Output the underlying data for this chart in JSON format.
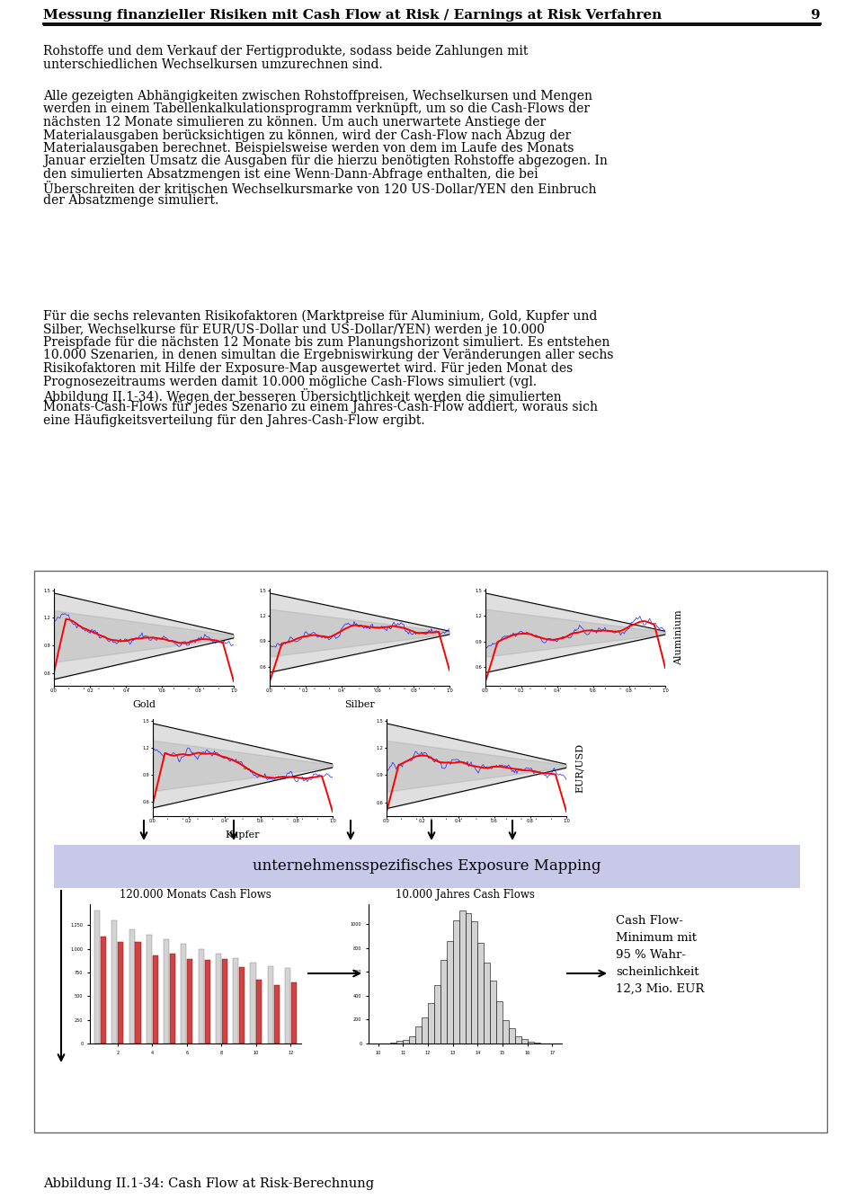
{
  "header_text": "Messung finanzieller Risiken mit Cash Flow at Risk / Earnings at Risk Verfahren",
  "header_page": "9",
  "para1": "Rohstoffe und dem Verkauf der Fertigprodukte, sodass beide Zahlungen mit unterschiedlichen Wechselkursen umzurechnen sind.",
  "para2_line1": "Alle gezeigten Abhängigkeiten zwischen Rohstoffpreisen, Wechselkursen und Mengen",
  "para2_line2": "werden in einem Tabellenkalkulationsprogramm verknüpft, um so die Cash-Flows der",
  "para2_line3": "nächsten 12 Monate simulieren zu können. Um auch unerwartete Anstiege der",
  "para2_line4": "Materialausgaben berücksichtigen zu können, wird der Cash-Flow nach Abzug der",
  "para2_line5": "Materialausgaben berechnet. Beispielsweise werden von dem im Laufe des Monats",
  "para2_line6": "Januar erzielten Umsatz die Ausgaben für die hierzu benötigten Rohstoffe abgezogen. In",
  "para2_line7": "den simulierten Absatzmengen ist eine Wenn-Dann-Abfrage enthalten, die bei",
  "para2_line8": "Überschreiten der kritischen Wechselkursmarke von 120 US-Dollar/YEN den Einbruch",
  "para2_line9": "der Absatzmenge simuliert.",
  "para3_line1": "Für die sechs relevanten Risikofaktoren (Marktpreise für Aluminium, Gold, Kupfer und",
  "para3_line2": "Silber, Wechselkurse für EUR/US-Dollar und US-Dollar/YEN) werden je 10.000",
  "para3_line3": "Preispfade für die nächsten 12 Monate bis zum Planungshorizont simuliert. Es entstehen",
  "para3_line4": "10.000 Szenarien, in denen simultan die Ergebniswirkung der Veränderungen aller sechs",
  "para3_line5": "Risikofaktoren mit Hilfe der Exposure-Map ausgewertet wird. Für jeden Monat des",
  "para3_line6": "Prognosezeitraums werden damit 10.000 mögliche Cash-Flows simuliert (vgl.",
  "para3_line7": "Abbildung II.1-34). Wegen der besseren Übersichtlichkeit werden die simulierten",
  "para3_line8": "Monats-Cash-Flows für jedes Szenario zu einem Jahres-Cash-Flow addiert, woraus sich",
  "para3_line9": "eine Häufigkeitsverteilung für den Jahres-Cash-Flow ergibt.",
  "caption": "Abbildung II.1-34: Cash Flow at Risk-Berechnung",
  "exposure_label": "unternehmensspezifisches Exposure Mapping",
  "label_120k": "120.000 Monats Cash Flows",
  "label_10k": "10.000 Jahres Cash Flows",
  "cashflow_text": "Cash Flow-\nMinimum mit\n95 % Wahr-\nscheinlichkeit\n12,3 Mio. EUR",
  "chart_labels": [
    "Gold",
    "Silber",
    "Aluminium",
    "Kupfer",
    "EUR/USD"
  ],
  "background_color": "#ffffff",
  "exposure_color": "#c8c8e8"
}
